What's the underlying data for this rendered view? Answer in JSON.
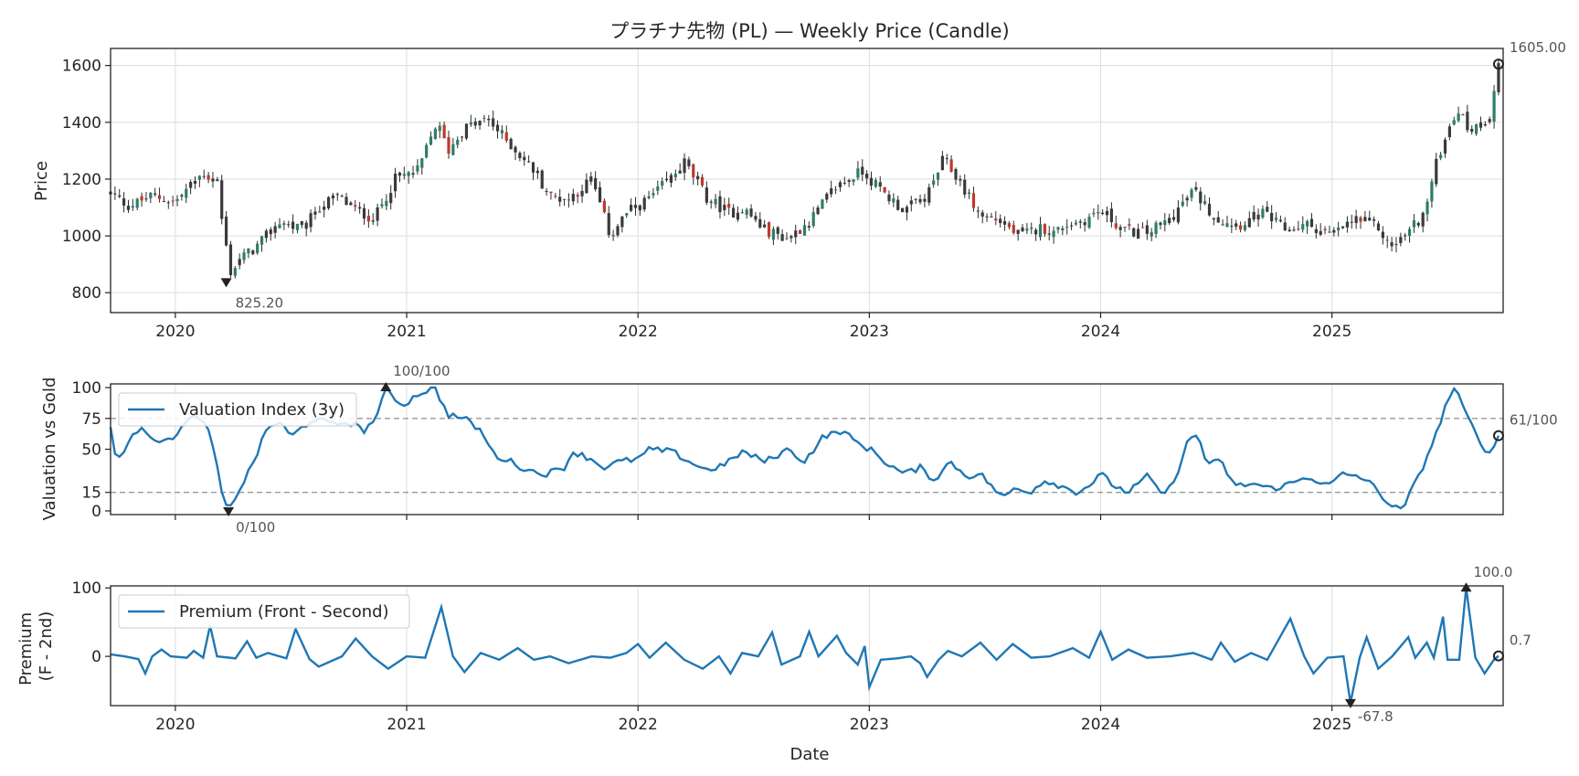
{
  "chart_data": [
    {
      "type": "candlestick",
      "title": "プラチナ先物 (PL) — Weekly Price (Candle)",
      "xlabel": "",
      "ylabel": "Price",
      "xlim": [
        2019.72,
        2025.74
      ],
      "ylim": [
        730,
        1660
      ],
      "yticks": [
        800,
        1000,
        1200,
        1400,
        1600
      ],
      "xticks": [
        "2020",
        "2021",
        "2022",
        "2023",
        "2024",
        "2025"
      ],
      "grid": true,
      "price_path": [
        [
          2019.72,
          1150
        ],
        [
          2019.8,
          1105
        ],
        [
          2019.9,
          1140
        ],
        [
          2020.0,
          1120
        ],
        [
          2020.08,
          1190
        ],
        [
          2020.12,
          1220
        ],
        [
          2020.2,
          1180
        ],
        [
          2020.18,
          1165
        ],
        [
          2020.22,
          960
        ],
        [
          2020.24,
          870
        ],
        [
          2020.28,
          920
        ],
        [
          2020.35,
          960
        ],
        [
          2020.45,
          1050
        ],
        [
          2020.55,
          1020
        ],
        [
          2020.62,
          1100
        ],
        [
          2020.7,
          1140
        ],
        [
          2020.78,
          1090
        ],
        [
          2020.86,
          1060
        ],
        [
          2020.95,
          1200
        ],
        [
          2021.05,
          1230
        ],
        [
          2021.13,
          1400
        ],
        [
          2021.18,
          1300
        ],
        [
          2021.25,
          1380
        ],
        [
          2021.35,
          1410
        ],
        [
          2021.45,
          1320
        ],
        [
          2021.55,
          1230
        ],
        [
          2021.62,
          1140
        ],
        [
          2021.7,
          1130
        ],
        [
          2021.8,
          1200
        ],
        [
          2021.88,
          1000
        ],
        [
          2021.95,
          1080
        ],
        [
          2022.05,
          1130
        ],
        [
          2022.15,
          1210
        ],
        [
          2022.2,
          1260
        ],
        [
          2022.3,
          1130
        ],
        [
          2022.4,
          1080
        ],
        [
          2022.45,
          1100
        ],
        [
          2022.55,
          1020
        ],
        [
          2022.65,
          990
        ],
        [
          2022.75,
          1060
        ],
        [
          2022.85,
          1170
        ],
        [
          2022.97,
          1230
        ],
        [
          2023.05,
          1160
        ],
        [
          2023.15,
          1090
        ],
        [
          2023.25,
          1140
        ],
        [
          2023.32,
          1270
        ],
        [
          2023.4,
          1180
        ],
        [
          2023.48,
          1070
        ],
        [
          2023.55,
          1060
        ],
        [
          2023.65,
          1000
        ],
        [
          2023.75,
          1030
        ],
        [
          2023.8,
          1010
        ],
        [
          2023.85,
          1040
        ],
        [
          2023.92,
          1050
        ],
        [
          2024.0,
          1090
        ],
        [
          2024.1,
          1020
        ],
        [
          2024.2,
          1010
        ],
        [
          2024.3,
          1060
        ],
        [
          2024.4,
          1160
        ],
        [
          2024.5,
          1060
        ],
        [
          2024.6,
          1040
        ],
        [
          2024.7,
          1080
        ],
        [
          2024.8,
          1020
        ],
        [
          2024.9,
          1040
        ],
        [
          2025.0,
          1000
        ],
        [
          2025.1,
          1060
        ],
        [
          2025.2,
          1030
        ],
        [
          2025.25,
          960
        ],
        [
          2025.3,
          990
        ],
        [
          2025.4,
          1080
        ],
        [
          2025.45,
          1250
        ],
        [
          2025.5,
          1380
        ],
        [
          2025.55,
          1450
        ],
        [
          2025.58,
          1380
        ],
        [
          2025.62,
          1380
        ],
        [
          2025.68,
          1420
        ],
        [
          2025.72,
          1605
        ]
      ],
      "annotations": {
        "min": {
          "x": 2020.22,
          "y": 825.2,
          "label": "825.20"
        },
        "last": {
          "x": 2025.72,
          "y": 1605.0,
          "label": "1605.00"
        }
      }
    },
    {
      "type": "line",
      "ylabel": "Valuation vs Gold",
      "ylim": [
        -3,
        103
      ],
      "yticks": [
        0,
        15,
        50,
        75,
        100
      ],
      "hlines": [
        15,
        75
      ],
      "legend": "Valuation Index (3y)",
      "legend_position": "upper-left",
      "series_color": "#1f77b4",
      "keypoints": [
        [
          2019.72,
          68
        ],
        [
          2019.74,
          45
        ],
        [
          2019.78,
          48
        ],
        [
          2019.81,
          58
        ],
        [
          2019.85,
          70
        ],
        [
          2019.9,
          60
        ],
        [
          2019.95,
          55
        ],
        [
          2020.0,
          62
        ],
        [
          2020.05,
          72
        ],
        [
          2020.1,
          78
        ],
        [
          2020.14,
          65
        ],
        [
          2020.17,
          48
        ],
        [
          2020.19,
          25
        ],
        [
          2020.21,
          5
        ],
        [
          2020.23,
          0
        ],
        [
          2020.26,
          12
        ],
        [
          2020.3,
          25
        ],
        [
          2020.35,
          45
        ],
        [
          2020.4,
          68
        ],
        [
          2020.45,
          72
        ],
        [
          2020.5,
          60
        ],
        [
          2020.55,
          68
        ],
        [
          2020.6,
          75
        ],
        [
          2020.68,
          70
        ],
        [
          2020.75,
          72
        ],
        [
          2020.82,
          65
        ],
        [
          2020.88,
          80
        ],
        [
          2020.91,
          100
        ],
        [
          2020.98,
          85
        ],
        [
          2021.05,
          95
        ],
        [
          2021.12,
          100
        ],
        [
          2021.18,
          78
        ],
        [
          2021.25,
          75
        ],
        [
          2021.32,
          65
        ],
        [
          2021.38,
          45
        ],
        [
          2021.45,
          40
        ],
        [
          2021.52,
          33
        ],
        [
          2021.6,
          30
        ],
        [
          2021.68,
          35
        ],
        [
          2021.72,
          48
        ],
        [
          2021.8,
          42
        ],
        [
          2021.85,
          35
        ],
        [
          2021.92,
          40
        ],
        [
          2022.0,
          42
        ],
        [
          2022.05,
          50
        ],
        [
          2022.15,
          48
        ],
        [
          2022.22,
          40
        ],
        [
          2022.3,
          33
        ],
        [
          2022.38,
          38
        ],
        [
          2022.45,
          48
        ],
        [
          2022.55,
          40
        ],
        [
          2022.65,
          50
        ],
        [
          2022.72,
          40
        ],
        [
          2022.8,
          60
        ],
        [
          2022.88,
          65
        ],
        [
          2022.95,
          55
        ],
        [
          2023.02,
          48
        ],
        [
          2023.08,
          38
        ],
        [
          2023.15,
          30
        ],
        [
          2023.22,
          35
        ],
        [
          2023.28,
          25
        ],
        [
          2023.35,
          40
        ],
        [
          2023.42,
          28
        ],
        [
          2023.48,
          30
        ],
        [
          2023.53,
          20
        ],
        [
          2023.58,
          10
        ],
        [
          2023.62,
          18
        ],
        [
          2023.7,
          16
        ],
        [
          2023.76,
          25
        ],
        [
          2023.83,
          20
        ],
        [
          2023.9,
          15
        ],
        [
          2023.96,
          22
        ],
        [
          2024.0,
          30
        ],
        [
          2024.06,
          20
        ],
        [
          2024.12,
          15
        ],
        [
          2024.2,
          28
        ],
        [
          2024.28,
          12
        ],
        [
          2024.34,
          35
        ],
        [
          2024.38,
          58
        ],
        [
          2024.42,
          62
        ],
        [
          2024.46,
          38
        ],
        [
          2024.52,
          40
        ],
        [
          2024.58,
          20
        ],
        [
          2024.66,
          22
        ],
        [
          2024.74,
          18
        ],
        [
          2024.82,
          22
        ],
        [
          2024.9,
          28
        ],
        [
          2024.98,
          20
        ],
        [
          2025.05,
          30
        ],
        [
          2025.12,
          28
        ],
        [
          2025.18,
          20
        ],
        [
          2025.25,
          5
        ],
        [
          2025.3,
          0
        ],
        [
          2025.38,
          30
        ],
        [
          2025.45,
          62
        ],
        [
          2025.5,
          90
        ],
        [
          2025.53,
          100
        ],
        [
          2025.58,
          78
        ],
        [
          2025.63,
          60
        ],
        [
          2025.68,
          45
        ],
        [
          2025.72,
          61
        ]
      ],
      "annotations": {
        "max": {
          "x": 2020.91,
          "y": 100,
          "label": "100/100"
        },
        "min": {
          "x": 2020.23,
          "y": 0,
          "label": "0/100"
        },
        "last": {
          "x": 2025.72,
          "y": 61,
          "label": "61/100"
        }
      }
    },
    {
      "type": "line",
      "ylabel": "Premium\n(F - 2nd)",
      "xlabel": "Date",
      "ylim": [
        -72,
        103
      ],
      "yticks": [
        0,
        100
      ],
      "legend": "Premium (Front - Second)",
      "legend_position": "upper-left",
      "series_color": "#1f77b4",
      "keypoints": [
        [
          2019.72,
          3
        ],
        [
          2019.78,
          0
        ],
        [
          2019.84,
          -4
        ],
        [
          2019.87,
          -25
        ],
        [
          2019.9,
          0
        ],
        [
          2019.94,
          10
        ],
        [
          2019.98,
          0
        ],
        [
          2020.05,
          -2
        ],
        [
          2020.08,
          8
        ],
        [
          2020.12,
          -2
        ],
        [
          2020.15,
          45
        ],
        [
          2020.18,
          0
        ],
        [
          2020.26,
          -3
        ],
        [
          2020.31,
          22
        ],
        [
          2020.35,
          -2
        ],
        [
          2020.4,
          5
        ],
        [
          2020.48,
          -3
        ],
        [
          2020.52,
          40
        ],
        [
          2020.58,
          -4
        ],
        [
          2020.62,
          -15
        ],
        [
          2020.72,
          0
        ],
        [
          2020.78,
          26
        ],
        [
          2020.85,
          0
        ],
        [
          2020.92,
          -18
        ],
        [
          2021.0,
          0
        ],
        [
          2021.08,
          -2
        ],
        [
          2021.15,
          72
        ],
        [
          2021.2,
          0
        ],
        [
          2021.25,
          -23
        ],
        [
          2021.32,
          5
        ],
        [
          2021.4,
          -5
        ],
        [
          2021.48,
          12
        ],
        [
          2021.55,
          -5
        ],
        [
          2021.62,
          0
        ],
        [
          2021.7,
          -10
        ],
        [
          2021.8,
          0
        ],
        [
          2021.88,
          -2
        ],
        [
          2021.95,
          5
        ],
        [
          2022.0,
          18
        ],
        [
          2022.05,
          -2
        ],
        [
          2022.12,
          20
        ],
        [
          2022.2,
          -5
        ],
        [
          2022.28,
          -18
        ],
        [
          2022.35,
          0
        ],
        [
          2022.4,
          -25
        ],
        [
          2022.45,
          5
        ],
        [
          2022.52,
          0
        ],
        [
          2022.58,
          35
        ],
        [
          2022.62,
          -12
        ],
        [
          2022.7,
          0
        ],
        [
          2022.74,
          36
        ],
        [
          2022.78,
          0
        ],
        [
          2022.86,
          30
        ],
        [
          2022.9,
          5
        ],
        [
          2022.95,
          -12
        ],
        [
          2022.98,
          15
        ],
        [
          2023.0,
          -45
        ],
        [
          2023.05,
          -5
        ],
        [
          2023.12,
          -3
        ],
        [
          2023.18,
          0
        ],
        [
          2023.22,
          -10
        ],
        [
          2023.25,
          -30
        ],
        [
          2023.3,
          -5
        ],
        [
          2023.34,
          8
        ],
        [
          2023.4,
          0
        ],
        [
          2023.48,
          20
        ],
        [
          2023.55,
          -5
        ],
        [
          2023.62,
          18
        ],
        [
          2023.7,
          -2
        ],
        [
          2023.78,
          0
        ],
        [
          2023.88,
          12
        ],
        [
          2023.95,
          -2
        ],
        [
          2024.0,
          36
        ],
        [
          2024.05,
          -5
        ],
        [
          2024.12,
          10
        ],
        [
          2024.2,
          -2
        ],
        [
          2024.3,
          0
        ],
        [
          2024.4,
          5
        ],
        [
          2024.48,
          -5
        ],
        [
          2024.52,
          20
        ],
        [
          2024.58,
          -8
        ],
        [
          2024.65,
          5
        ],
        [
          2024.72,
          -5
        ],
        [
          2024.82,
          55
        ],
        [
          2024.88,
          0
        ],
        [
          2024.92,
          -25
        ],
        [
          2024.98,
          -2
        ],
        [
          2025.05,
          0
        ],
        [
          2025.08,
          -67.8
        ],
        [
          2025.12,
          -2
        ],
        [
          2025.15,
          28
        ],
        [
          2025.2,
          -18
        ],
        [
          2025.26,
          0
        ],
        [
          2025.33,
          28
        ],
        [
          2025.36,
          -2
        ],
        [
          2025.41,
          20
        ],
        [
          2025.44,
          -2
        ],
        [
          2025.48,
          58
        ],
        [
          2025.5,
          -5
        ],
        [
          2025.55,
          -5
        ],
        [
          2025.58,
          100
        ],
        [
          2025.62,
          -2
        ],
        [
          2025.66,
          -25
        ],
        [
          2025.7,
          -5
        ],
        [
          2025.72,
          0.7
        ]
      ],
      "annotations": {
        "max": {
          "x": 2025.58,
          "y": 100.0,
          "label": "100.0"
        },
        "min": {
          "x": 2025.08,
          "y": -67.8,
          "label": "-67.8"
        },
        "last": {
          "x": 2025.72,
          "y": 0.7,
          "label": "0.7"
        }
      }
    }
  ]
}
